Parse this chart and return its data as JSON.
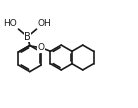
{
  "bg_color": "#ffffff",
  "line_color": "#1a1a1a",
  "lw": 1.2,
  "fs": 6.5,
  "fig_w": 1.38,
  "fig_h": 1.08,
  "dpi": 100,
  "xlim": [
    0.0,
    5.8
  ],
  "ylim": [
    -0.5,
    4.2
  ]
}
